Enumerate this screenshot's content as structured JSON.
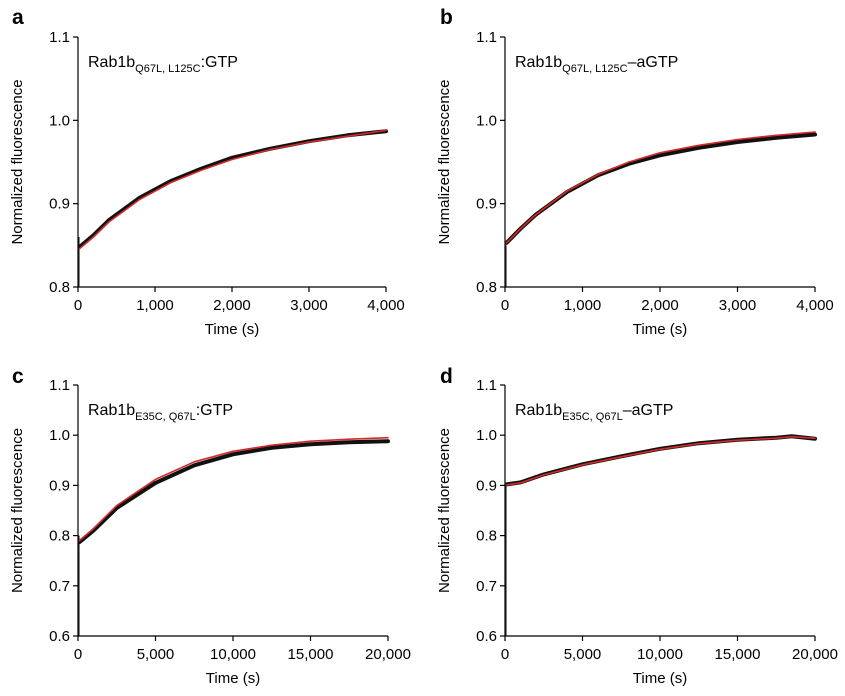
{
  "colors": {
    "data": "#111111",
    "fit": "#d42a2a",
    "axis": "#000000"
  },
  "chart_data": [
    {
      "panel": "a",
      "type": "line",
      "annotation": {
        "main": "Rab1b",
        "sub": "Q67L, L125C",
        "suffix": ":GTP"
      },
      "xlabel": "Time (s)",
      "ylabel": "Normalized fluorescence",
      "xlim": [
        0,
        4000
      ],
      "ylim": [
        0.8,
        1.1
      ],
      "xticks": [
        0,
        1000,
        2000,
        3000,
        4000
      ],
      "xtick_labels": [
        "0",
        "1,000",
        "2,000",
        "3,000",
        "4,000"
      ],
      "yticks": [
        0.8,
        0.9,
        1.0,
        1.1
      ],
      "ytick_labels": [
        "0.8",
        "0.9",
        "1.0",
        "1.1"
      ],
      "spike": {
        "x": 10,
        "y_low": 0.8,
        "y_high": 0.86
      },
      "series": [
        {
          "name": "data",
          "x": [
            20,
            200,
            400,
            800,
            1200,
            1600,
            2000,
            2500,
            3000,
            3500,
            4000
          ],
          "y": [
            0.848,
            0.862,
            0.88,
            0.907,
            0.927,
            0.942,
            0.955,
            0.966,
            0.975,
            0.982,
            0.987
          ]
        },
        {
          "name": "fit",
          "x": [
            20,
            200,
            400,
            800,
            1200,
            1600,
            2000,
            2500,
            3000,
            3500,
            4000
          ],
          "y": [
            0.846,
            0.86,
            0.878,
            0.905,
            0.925,
            0.94,
            0.953,
            0.965,
            0.974,
            0.981,
            0.988
          ]
        }
      ]
    },
    {
      "panel": "b",
      "type": "line",
      "annotation": {
        "main": "Rab1b",
        "sub": "Q67L, L125C",
        "suffix": "–aGTP"
      },
      "xlabel": "Time (s)",
      "ylabel": "Normalized fluorescence",
      "xlim": [
        0,
        4000
      ],
      "ylim": [
        0.8,
        1.1
      ],
      "xticks": [
        0,
        1000,
        2000,
        3000,
        4000
      ],
      "xtick_labels": [
        "0",
        "1,000",
        "2,000",
        "3,000",
        "4,000"
      ],
      "yticks": [
        0.8,
        0.9,
        1.0,
        1.1
      ],
      "ytick_labels": [
        "0.8",
        "0.9",
        "1.0",
        "1.1"
      ],
      "spike": {
        "x": 10,
        "y_low": 0.8,
        "y_high": 0.85
      },
      "series": [
        {
          "name": "data",
          "x": [
            20,
            200,
            400,
            800,
            1200,
            1600,
            2000,
            2500,
            3000,
            3500,
            4000
          ],
          "y": [
            0.853,
            0.87,
            0.887,
            0.914,
            0.934,
            0.948,
            0.958,
            0.967,
            0.974,
            0.979,
            0.983
          ]
        },
        {
          "name": "fit",
          "x": [
            20,
            200,
            400,
            800,
            1200,
            1600,
            2000,
            2500,
            3000,
            3500,
            4000
          ],
          "y": [
            0.853,
            0.87,
            0.887,
            0.915,
            0.935,
            0.95,
            0.961,
            0.97,
            0.977,
            0.982,
            0.986
          ]
        }
      ]
    },
    {
      "panel": "c",
      "type": "line",
      "annotation": {
        "main": "Rab1b",
        "sub": "E35C, Q67L",
        "suffix": ":GTP"
      },
      "xlabel": "Time (s)",
      "ylabel": "Normalized fluorescence",
      "xlim": [
        0,
        20000
      ],
      "ylim": [
        0.6,
        1.1
      ],
      "xticks": [
        0,
        5000,
        10000,
        15000,
        20000
      ],
      "xtick_labels": [
        "0",
        "5,000",
        "10,000",
        "15,000",
        "20,000"
      ],
      "yticks": [
        0.6,
        0.7,
        0.8,
        0.9,
        1.0,
        1.1
      ],
      "ytick_labels": [
        "0.6",
        "0.7",
        "0.8",
        "0.9",
        "1.0",
        "1.1"
      ],
      "spike": {
        "x": 50,
        "y_low": 0.6,
        "y_high": 0.8
      },
      "series": [
        {
          "name": "data",
          "x": [
            100,
            1000,
            2500,
            5000,
            7500,
            10000,
            12500,
            15000,
            17500,
            20000
          ],
          "y": [
            0.787,
            0.81,
            0.855,
            0.905,
            0.94,
            0.962,
            0.975,
            0.982,
            0.986,
            0.988
          ]
        },
        {
          "name": "fit",
          "x": [
            100,
            1000,
            2500,
            5000,
            7500,
            10000,
            12500,
            15000,
            17500,
            20000
          ],
          "y": [
            0.79,
            0.814,
            0.86,
            0.912,
            0.947,
            0.968,
            0.98,
            0.988,
            0.992,
            0.995
          ]
        }
      ]
    },
    {
      "panel": "d",
      "type": "line",
      "annotation": {
        "main": "Rab1b",
        "sub": "E35C, Q67L",
        "suffix": "–aGTP"
      },
      "xlabel": "Time (s)",
      "ylabel": "Normalized fluorescence",
      "xlim": [
        0,
        20000
      ],
      "ylim": [
        0.6,
        1.1
      ],
      "xticks": [
        0,
        5000,
        10000,
        15000,
        20000
      ],
      "xtick_labels": [
        "0",
        "5,000",
        "10,000",
        "15,000",
        "20,000"
      ],
      "yticks": [
        0.6,
        0.7,
        0.8,
        0.9,
        1.0,
        1.1
      ],
      "ytick_labels": [
        "0.6",
        "0.7",
        "0.8",
        "0.9",
        "1.0",
        "1.1"
      ],
      "spike": {
        "x": 50,
        "y_low": 0.6,
        "y_high": 0.9
      },
      "series": [
        {
          "name": "data",
          "x": [
            100,
            1000,
            2500,
            5000,
            7500,
            10000,
            12500,
            15000,
            17500,
            18500,
            20000
          ],
          "y": [
            0.902,
            0.906,
            0.922,
            0.942,
            0.958,
            0.973,
            0.984,
            0.991,
            0.995,
            0.998,
            0.993
          ]
        },
        {
          "name": "fit",
          "x": [
            100,
            1000,
            2500,
            5000,
            7500,
            10000,
            12500,
            15000,
            17500,
            18500,
            20000
          ],
          "y": [
            0.901,
            0.905,
            0.921,
            0.941,
            0.957,
            0.972,
            0.983,
            0.99,
            0.994,
            0.997,
            0.994
          ]
        }
      ]
    }
  ]
}
